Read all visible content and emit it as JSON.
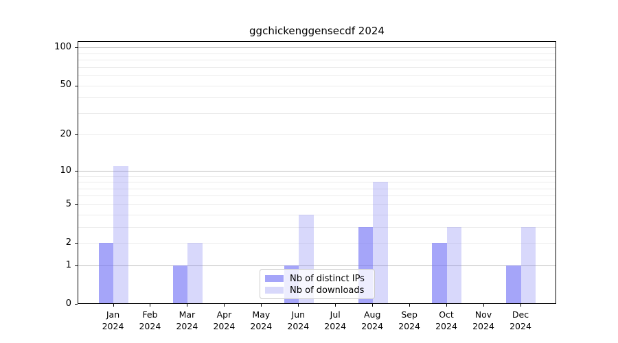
{
  "chart_data": {
    "type": "bar",
    "title": "ggchickenggensecdf 2024",
    "year": "2024",
    "categories": [
      "Jan",
      "Feb",
      "Mar",
      "Apr",
      "May",
      "Jun",
      "Jul",
      "Aug",
      "Sep",
      "Oct",
      "Nov",
      "Dec"
    ],
    "series": [
      {
        "name": "Nb of distinct IPs",
        "color": "#a8a8f8",
        "rgba": "rgba(110,110,245,0.62)",
        "values": [
          2,
          0,
          1,
          0,
          0,
          1,
          0,
          3,
          0,
          2,
          0,
          1
        ]
      },
      {
        "name": "Nb of downloads",
        "color": "#d8d8f8",
        "rgba": "rgba(110,110,240,0.27)",
        "values": [
          11,
          0,
          2,
          0,
          0,
          4,
          0,
          8,
          0,
          3,
          0,
          3
        ]
      }
    ],
    "scale": "log1p",
    "ylim": [
      0,
      112
    ],
    "yticks": [
      0,
      1,
      2,
      5,
      10,
      20,
      50,
      100
    ],
    "major_gridlines": [
      1,
      10,
      100
    ],
    "minor_gridlines": [
      2,
      3,
      4,
      5,
      6,
      7,
      8,
      9,
      20,
      30,
      40,
      50,
      60,
      70,
      80,
      90
    ],
    "grid": true,
    "legend_position": "lower center"
  }
}
